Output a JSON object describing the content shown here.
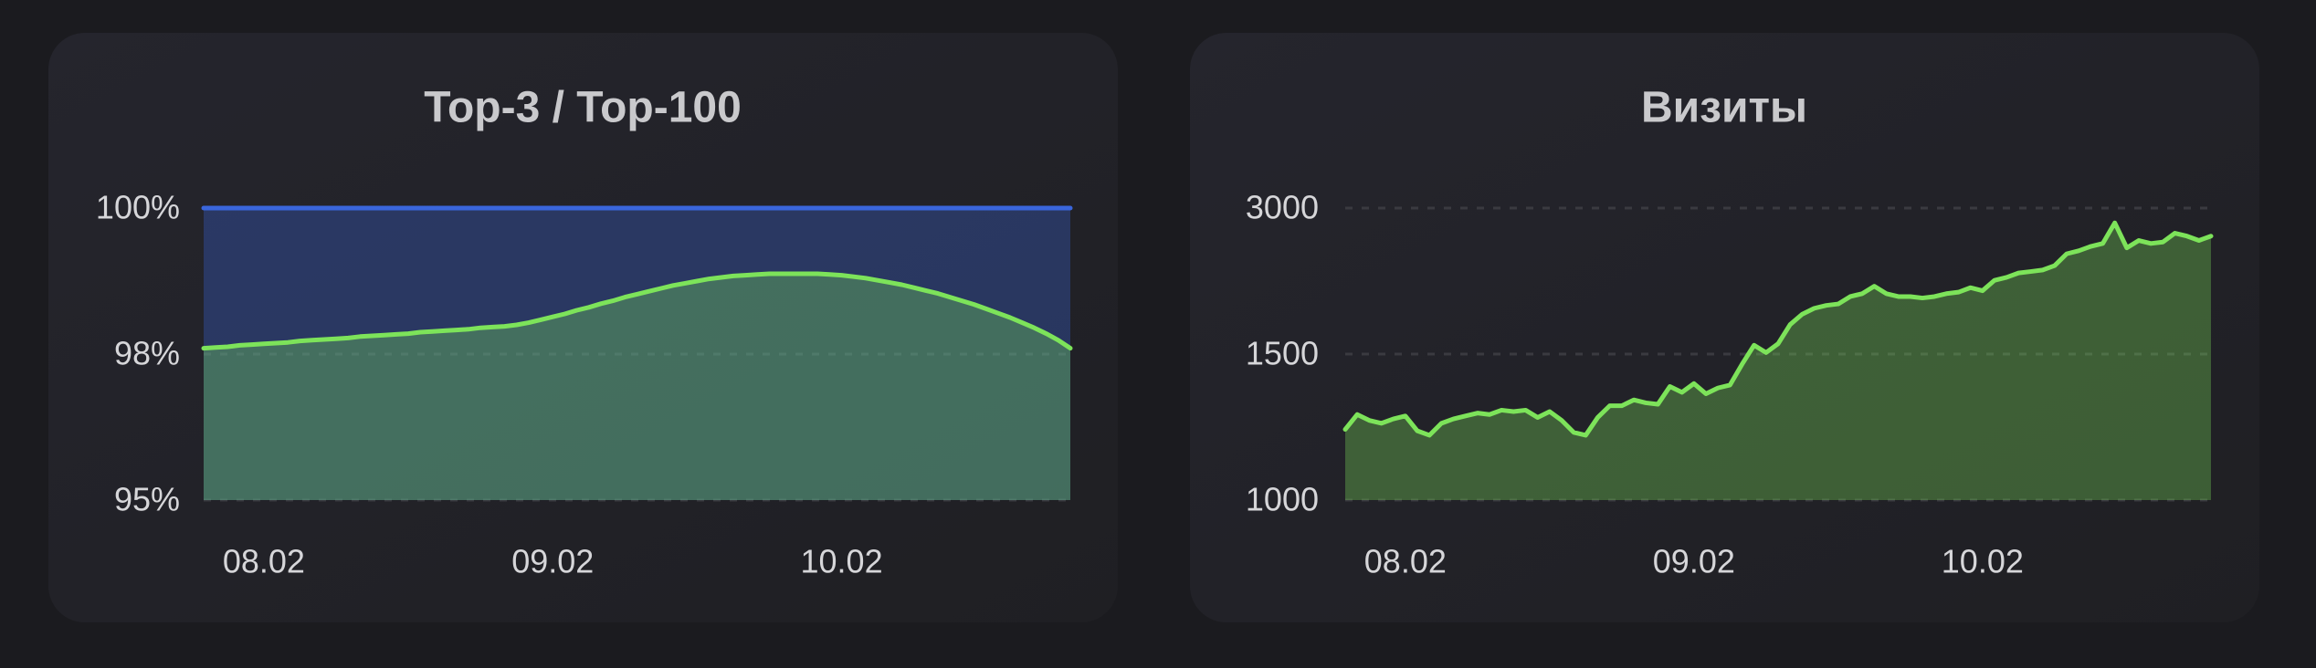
{
  "chart_data": [
    {
      "type": "area",
      "title": "Top-3 / Top-100",
      "categories": [
        null,
        null,
        null,
        null,
        null,
        "08.02",
        null,
        null,
        null,
        null,
        null,
        null,
        null,
        null,
        null,
        null,
        null,
        null,
        null,
        null,
        null,
        null,
        null,
        null,
        null,
        null,
        null,
        null,
        null,
        "09.02",
        null,
        null,
        null,
        null,
        null,
        null,
        null,
        null,
        null,
        null,
        null,
        null,
        null,
        null,
        null,
        null,
        null,
        null,
        null,
        null,
        null,
        null,
        null,
        "10.02",
        null,
        null,
        null,
        null,
        null,
        null,
        null,
        null,
        null,
        null,
        null,
        null,
        null,
        null,
        null,
        null,
        null,
        null,
        null
      ],
      "series": [
        {
          "color": "#3a66dc",
          "values": [
            100,
            100,
            100,
            100,
            100,
            100,
            100,
            100,
            100,
            100,
            100,
            100,
            100,
            100,
            100,
            100,
            100,
            100,
            100,
            100,
            100,
            100,
            100,
            100,
            100,
            100,
            100,
            100,
            100,
            100,
            100,
            100,
            100,
            100,
            100,
            100,
            100,
            100,
            100,
            100,
            100,
            100,
            100,
            100,
            100,
            100,
            100,
            100,
            100,
            100,
            100,
            100,
            100,
            100,
            100,
            100,
            100,
            100,
            100,
            100,
            100,
            100,
            100,
            100,
            100,
            100,
            100,
            100,
            100,
            100,
            100,
            100,
            100
          ]
        },
        {
          "color": "#7de35a",
          "values": [
            98.08,
            98.09,
            98.1,
            98.12,
            98.13,
            98.14,
            98.15,
            98.16,
            98.18,
            98.19,
            98.2,
            98.21,
            98.22,
            98.24,
            98.25,
            98.26,
            98.27,
            98.28,
            98.3,
            98.31,
            98.32,
            98.33,
            98.34,
            98.36,
            98.37,
            98.38,
            98.4,
            98.43,
            98.47,
            98.51,
            98.55,
            98.6,
            98.64,
            98.69,
            98.73,
            98.78,
            98.82,
            98.86,
            98.9,
            98.94,
            98.97,
            99.0,
            99.03,
            99.05,
            99.07,
            99.08,
            99.09,
            99.1,
            99.1,
            99.1,
            99.1,
            99.1,
            99.09,
            99.08,
            99.06,
            99.04,
            99.01,
            98.98,
            98.95,
            98.91,
            98.87,
            98.83,
            98.78,
            98.73,
            98.68,
            98.62,
            98.56,
            98.5,
            98.43,
            98.36,
            98.28,
            98.19,
            98.08
          ]
        }
      ],
      "ylim": [
        95,
        100
      ],
      "yticks": [
        {
          "value": 95,
          "label": "95%"
        },
        {
          "value": 98,
          "label": "98%"
        },
        {
          "value": 100,
          "label": "100%"
        }
      ],
      "grid": true
    },
    {
      "type": "area",
      "title": "Визиты",
      "categories": [
        null,
        null,
        null,
        null,
        null,
        "08.02",
        null,
        null,
        null,
        null,
        null,
        null,
        null,
        null,
        null,
        null,
        null,
        null,
        null,
        null,
        null,
        null,
        null,
        null,
        null,
        null,
        null,
        null,
        null,
        "09.02",
        null,
        null,
        null,
        null,
        null,
        null,
        null,
        null,
        null,
        null,
        null,
        null,
        null,
        null,
        null,
        null,
        null,
        null,
        null,
        null,
        null,
        null,
        null,
        "10.02",
        null,
        null,
        null,
        null,
        null,
        null,
        null,
        null,
        null,
        null,
        null,
        null,
        null,
        null,
        null,
        null,
        null,
        null,
        null
      ],
      "series": [
        {
          "color": "#7de35a",
          "values": [
            1242,
            1293,
            1273,
            1263,
            1278,
            1288,
            1237,
            1222,
            1263,
            1278,
            1288,
            1298,
            1293,
            1308,
            1303,
            1308,
            1283,
            1303,
            1273,
            1232,
            1222,
            1283,
            1323,
            1323,
            1343,
            1333,
            1328,
            1389,
            1369,
            1399,
            1364,
            1384,
            1394,
            1465,
            1591,
            1515,
            1606,
            1803,
            1909,
            1970,
            2000,
            2015,
            2091,
            2121,
            2197,
            2121,
            2091,
            2091,
            2076,
            2091,
            2121,
            2136,
            2182,
            2151,
            2258,
            2288,
            2333,
            2348,
            2364,
            2409,
            2530,
            2561,
            2606,
            2636,
            2848,
            2591,
            2667,
            2636,
            2651,
            2742,
            2712,
            2667,
            2712
          ]
        }
      ],
      "ylim": [
        1000,
        3000
      ],
      "yticks": [
        1000,
        1500,
        3000
      ],
      "grid": true
    }
  ]
}
